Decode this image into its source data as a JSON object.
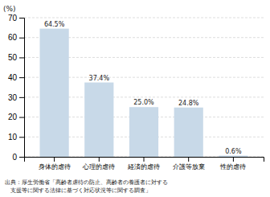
{
  "chart_data": {
    "type": "bar",
    "categories": [
      "身体的虐待",
      "心理的虐待",
      "経済的虐待",
      "介護等放棄",
      "性的虐待"
    ],
    "values": [
      64.5,
      37.4,
      25.0,
      24.8,
      0.6
    ],
    "value_labels": [
      "64.5%",
      "37.4%",
      "25.0%",
      "24.8%",
      "0.6%"
    ],
    "color": "#c8d9e8",
    "ylabel": "(%)",
    "ylim": [
      0,
      70
    ],
    "yticks": [
      0,
      10,
      20,
      30,
      40,
      50,
      60,
      70
    ],
    "grid": true,
    "annotations": [
      "出典：厚生労働省「高齢者虐待の防止、高齢者の養護者に対する",
      "　支援等に関する法律に基づく対応状況等に関する調査」"
    ]
  }
}
